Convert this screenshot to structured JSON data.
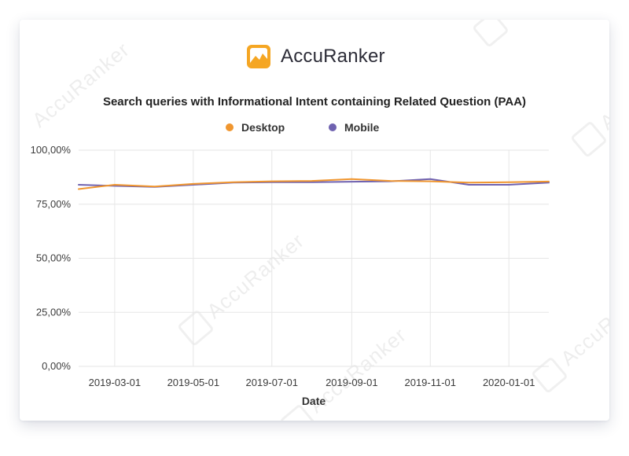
{
  "brand": {
    "name": "AccuRanker",
    "watermark": "AccuRanker"
  },
  "colors": {
    "desktop": "#f0962f",
    "mobile": "#6f62b0",
    "grid": "#e6e6e6",
    "logo": "#f5a623"
  },
  "chart_data": {
    "type": "line",
    "title": "Search queries with Informational Intent containing Related Question (PAA)",
    "xlabel": "Date",
    "ylabel": "",
    "ylim": [
      0,
      100
    ],
    "y_ticks": [
      0,
      25,
      50,
      75,
      100
    ],
    "y_tick_labels": [
      "0,00%",
      "25,00%",
      "50,00%",
      "75,00%",
      "100,00%"
    ],
    "x_ticks": [
      "2019-03-01",
      "2019-05-01",
      "2019-07-01",
      "2019-09-01",
      "2019-11-01",
      "2020-01-01"
    ],
    "x": [
      "2019-02-01",
      "2019-03-01",
      "2019-04-01",
      "2019-05-01",
      "2019-06-01",
      "2019-07-01",
      "2019-08-01",
      "2019-09-01",
      "2019-10-01",
      "2019-11-01",
      "2019-12-01",
      "2020-01-01",
      "2020-02-01"
    ],
    "grid": true,
    "legend_position": "top-center",
    "series": [
      {
        "name": "Desktop",
        "color": "#f0962f",
        "values": [
          82.0,
          84.0,
          83.2,
          84.4,
          85.2,
          85.6,
          85.8,
          86.6,
          85.8,
          85.6,
          85.0,
          85.2,
          85.5
        ]
      },
      {
        "name": "Mobile",
        "color": "#6f62b0",
        "values": [
          84.0,
          83.5,
          83.0,
          84.0,
          85.0,
          85.2,
          85.2,
          85.4,
          85.6,
          86.6,
          84.0,
          84.0,
          85.0
        ]
      }
    ]
  }
}
